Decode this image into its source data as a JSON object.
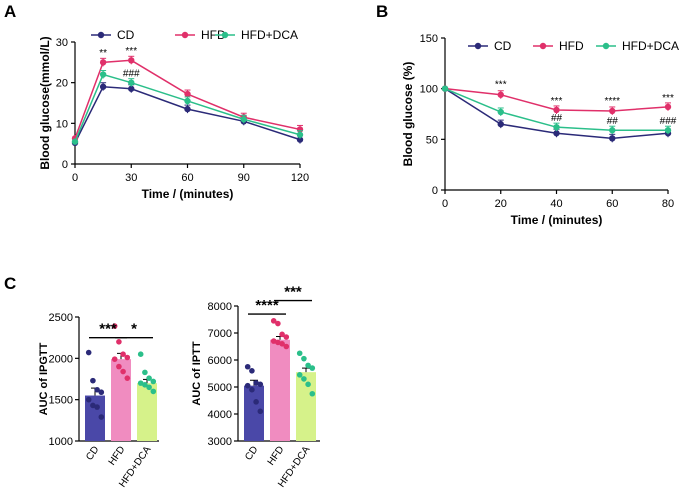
{
  "colors": {
    "CD": "#2b2a78",
    "HFD": "#e0306a",
    "HFD+DCA": "#2bbf8a",
    "bar_CD": "#4a48a8",
    "bar_HFD": "#f08cc0",
    "bar_DCA": "#d6f28a"
  },
  "chart_data": [
    {
      "panel": "A",
      "type": "line",
      "xlabel": "Time / (minutes)",
      "ylabel": "Blood glucose(mmol/L)",
      "x": [
        0,
        15,
        30,
        60,
        90,
        120
      ],
      "xlim": [
        0,
        120
      ],
      "ylim": [
        0,
        30
      ],
      "xticks": [
        0,
        30,
        60,
        90,
        120
      ],
      "yticks": [
        0,
        10,
        20,
        30
      ],
      "legend": [
        "CD",
        "HFD",
        "HFD+DCA"
      ],
      "series": [
        {
          "name": "CD",
          "values": [
            5.2,
            19.0,
            18.5,
            13.5,
            10.5,
            6.0
          ]
        },
        {
          "name": "HFD",
          "values": [
            6.3,
            25.0,
            25.5,
            17.2,
            11.5,
            8.5
          ]
        },
        {
          "name": "HFD+DCA",
          "values": [
            5.5,
            22.0,
            20.0,
            15.5,
            11.0,
            7.2
          ]
        }
      ],
      "annotations": [
        {
          "x": 15,
          "y": 26.5,
          "text": "**"
        },
        {
          "x": 30,
          "y": 27.0,
          "text": "***"
        },
        {
          "x": 30,
          "y": 21.5,
          "text": "###"
        }
      ]
    },
    {
      "panel": "B",
      "type": "line",
      "xlabel": "Time / (minutes)",
      "ylabel": "Blood glucose (%)",
      "x": [
        0,
        20,
        40,
        60,
        80
      ],
      "xlim": [
        0,
        80
      ],
      "ylim": [
        0,
        150
      ],
      "xticks": [
        0,
        20,
        40,
        60,
        80
      ],
      "yticks": [
        0,
        50,
        100,
        150
      ],
      "legend": [
        "CD",
        "HFD",
        "HFD+DCA"
      ],
      "series": [
        {
          "name": "CD",
          "values": [
            100,
            65,
            56,
            51,
            56
          ]
        },
        {
          "name": "HFD",
          "values": [
            100,
            94,
            79,
            78,
            82
          ]
        },
        {
          "name": "HFD+DCA",
          "values": [
            100,
            77,
            62,
            59,
            59
          ]
        }
      ],
      "annotations": [
        {
          "x": 20,
          "y": 101,
          "text": "***"
        },
        {
          "x": 40,
          "y": 85,
          "text": "***"
        },
        {
          "x": 40,
          "y": 68,
          "text": "##"
        },
        {
          "x": 60,
          "y": 85,
          "text": "****"
        },
        {
          "x": 60,
          "y": 65,
          "text": "##"
        },
        {
          "x": 80,
          "y": 88,
          "text": "***"
        },
        {
          "x": 80,
          "y": 65,
          "text": "###"
        }
      ]
    },
    {
      "panel": "C",
      "type": "bar",
      "ylabel": "AUC of IPGTT",
      "categories": [
        "CD",
        "HFD",
        "HFD+DCA"
      ],
      "values": [
        1550,
        1990,
        1700
      ],
      "errors": [
        90,
        70,
        45
      ],
      "ylim": [
        1000,
        2500
      ],
      "yticks": [
        1000,
        1500,
        2000,
        2500
      ],
      "points": [
        [
          2070,
          1730,
          1620,
          1590,
          1500,
          1430,
          1410,
          1290
        ],
        [
          2390,
          2200,
          2050,
          2010,
          1990,
          1900,
          1840,
          1760
        ],
        [
          2050,
          1830,
          1760,
          1720,
          1700,
          1680,
          1650,
          1600
        ]
      ],
      "brackets": [
        {
          "from": 0,
          "to": 1,
          "y": 2250,
          "text": "***"
        },
        {
          "from": 1,
          "to": 2,
          "y": 2250,
          "text": "*"
        }
      ]
    },
    {
      "type": "bar",
      "ylabel": "AUC of IPTT",
      "categories": [
        "CD",
        "HFD",
        "HFD+DCA"
      ],
      "values": [
        5050,
        6750,
        5550
      ],
      "errors": [
        200,
        120,
        150
      ],
      "ylim": [
        3000,
        8000
      ],
      "yticks": [
        3000,
        4000,
        5000,
        6000,
        7000,
        8000
      ],
      "points": [
        [
          5750,
          5600,
          5150,
          5100,
          5050,
          4900,
          4450,
          4100
        ],
        [
          7450,
          7350,
          6950,
          6850,
          6700,
          6650,
          6600,
          6500
        ],
        [
          6250,
          6050,
          5800,
          5700,
          5450,
          5300,
          5100,
          4750
        ]
      ],
      "brackets": [
        {
          "from": 0,
          "to": 1,
          "y": 7700,
          "text": "****"
        },
        {
          "from": 1,
          "to": 2,
          "y": 8200,
          "text": "***"
        }
      ]
    }
  ]
}
